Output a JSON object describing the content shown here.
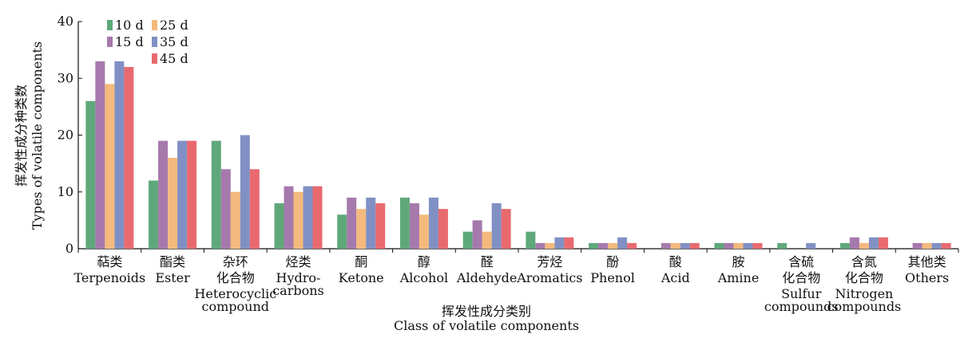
{
  "chart_data": {
    "type": "bar",
    "ylabel_cn": "挥发性成分种类数",
    "ylabel_en": "Types of volatile components",
    "xlabel_cn": "挥发性成分类别",
    "xlabel_en": "Class of volatile components",
    "ylim": [
      0,
      40
    ],
    "yticks": [
      "0",
      "10",
      "20",
      "30",
      "40"
    ],
    "grid": false,
    "legend_position": "top-left",
    "categories": [
      {
        "cn": "萜类",
        "en": [
          "Terpenoids"
        ]
      },
      {
        "cn": "酯类",
        "en": [
          "Ester"
        ]
      },
      {
        "cn": "杂环\n化合物",
        "en": [
          "Heterocyclic",
          "compound"
        ]
      },
      {
        "cn": "烃类",
        "en": [
          "Hydro-",
          "carbons"
        ]
      },
      {
        "cn": "酮",
        "en": [
          "Ketone"
        ]
      },
      {
        "cn": "醇",
        "en": [
          "Alcohol"
        ]
      },
      {
        "cn": "醛",
        "en": [
          "Aldehyde"
        ]
      },
      {
        "cn": "芳烃",
        "en": [
          "Aromatics"
        ]
      },
      {
        "cn": "酚",
        "en": [
          "Phenol"
        ]
      },
      {
        "cn": "酸",
        "en": [
          "Acid"
        ]
      },
      {
        "cn": "胺",
        "en": [
          "Amine"
        ]
      },
      {
        "cn": "含硫\n化合物",
        "en": [
          "Sulfur",
          "compounds"
        ]
      },
      {
        "cn": "含氮\n化合物",
        "en": [
          "Nitrogen",
          "compounds"
        ]
      },
      {
        "cn": "其他类",
        "en": [
          "Others"
        ]
      }
    ],
    "series": [
      {
        "name": "10 d",
        "color": "#5fa87a",
        "values": [
          26,
          12,
          19,
          8,
          6,
          9,
          3,
          3,
          1,
          0,
          1,
          1,
          1,
          0
        ]
      },
      {
        "name": "15 d",
        "color": "#a679ad",
        "values": [
          33,
          19,
          14,
          11,
          9,
          8,
          5,
          1,
          1,
          1,
          1,
          0,
          2,
          1
        ]
      },
      {
        "name": "25 d",
        "color": "#f4b97c",
        "values": [
          29,
          16,
          10,
          10,
          7,
          6,
          3,
          1,
          1,
          1,
          1,
          0,
          1,
          1
        ]
      },
      {
        "name": "35 d",
        "color": "#8190c4",
        "values": [
          33,
          19,
          20,
          11,
          9,
          9,
          8,
          2,
          2,
          1,
          1,
          1,
          2,
          1
        ]
      },
      {
        "name": "45 d",
        "color": "#e86a6f",
        "values": [
          32,
          19,
          14,
          11,
          8,
          7,
          7,
          2,
          1,
          1,
          1,
          0,
          2,
          1
        ]
      }
    ]
  }
}
